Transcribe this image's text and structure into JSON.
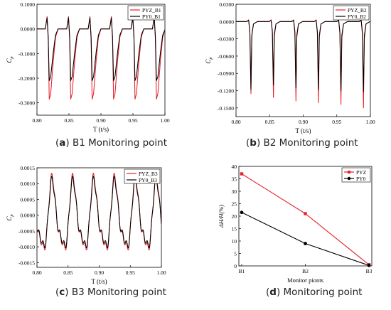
{
  "captions": [
    {
      "letter": "a",
      "text": "B1 Monitoring point"
    },
    {
      "letter": "b",
      "text": "B2 Monitoring point"
    },
    {
      "letter": "c",
      "text": "B3 Monitoring point"
    },
    {
      "letter": "d",
      "text": "Monitoring point"
    }
  ],
  "colors": {
    "pyz": "#e8202a",
    "py0": "#000000"
  },
  "chart_data": [
    {
      "id": "a",
      "type": "line",
      "xlabel": "T (t/s)",
      "ylabel": "Cp",
      "xlim": [
        0.8,
        1.0
      ],
      "ylim": [
        -0.35,
        0.1
      ],
      "xticks": [
        "0.80",
        "0.85",
        "0.90",
        "0.95",
        "1.00"
      ],
      "yticks": [
        "0.1000",
        "0.0000",
        "-0.1000",
        "-0.2000",
        "-0.3000"
      ],
      "legend": "top-right",
      "period": 0.0335,
      "first_peak": 0.817,
      "series": [
        {
          "name": "PYZ_B1",
          "color": "#e8202a",
          "baseline": 0.0,
          "spike": 0.05,
          "trough": -0.285
        },
        {
          "name": "PY0_B1",
          "color": "#000000",
          "baseline": 0.0,
          "spike": 0.045,
          "trough": -0.21
        }
      ]
    },
    {
      "id": "b",
      "type": "line",
      "xlabel": "T (t/s)",
      "ylabel": "Cp",
      "xlim": [
        0.8,
        1.0
      ],
      "ylim": [
        -0.165,
        0.03
      ],
      "xticks": [
        "0.80",
        "0.85",
        "0.90",
        "0.95",
        "1.00"
      ],
      "yticks": [
        "0.0300",
        "0.0000",
        "-0.0300",
        "-0.0600",
        "-0.0900",
        "-0.1200",
        "-0.1500"
      ],
      "legend": "top-right",
      "period": 0.0335,
      "first_peak": 0.82,
      "series": [
        {
          "name": "PYZ_B2",
          "color": "#e8202a",
          "baseline": 0.0,
          "spike": 0.003,
          "troughs": [
            -0.125,
            -0.132,
            -0.138,
            -0.141,
            -0.144,
            -0.15
          ]
        },
        {
          "name": "PY0_B2",
          "color": "#000000",
          "baseline": 0.0,
          "spike": 0.002,
          "troughs": [
            -0.118,
            -0.11,
            -0.115,
            -0.118,
            -0.12,
            -0.122
          ]
        }
      ]
    },
    {
      "id": "c",
      "type": "line",
      "xlabel": "T (t/s)",
      "ylabel": "Cp",
      "xlim": [
        0.8,
        1.0
      ],
      "ylim": [
        -0.00165,
        0.0015
      ],
      "xticks": [
        "0.80",
        "0.85",
        "0.90",
        "0.95",
        "1.00"
      ],
      "yticks": [
        "0.0015",
        "0.0010",
        "0.0005",
        "0.0000",
        "-0.0005",
        "-0.0010",
        "-0.0015"
      ],
      "legend": "top-right",
      "period": 0.0335,
      "phase": 0.825,
      "series": [
        {
          "name": "PYZ_B3",
          "color": "#e8202a",
          "amp": 0.00135,
          "offset": -0.0001
        },
        {
          "name": "PY0_B3",
          "color": "#000000",
          "amp": 0.00125,
          "offset": -0.0001
        }
      ]
    },
    {
      "id": "d",
      "type": "line",
      "xlabel": "Monitor pionts",
      "ylabel": "ΔH/H(%)",
      "categories": [
        "B1",
        "B2",
        "B3"
      ],
      "ylim": [
        0,
        40
      ],
      "yticks": [
        "0",
        "5",
        "10",
        "15",
        "20",
        "25",
        "30",
        "35",
        "40"
      ],
      "legend": "top-right",
      "series": [
        {
          "name": "PYZ",
          "color": "#e8202a",
          "marker": "square",
          "values": [
            37,
            21,
            0.5
          ]
        },
        {
          "name": "PY0",
          "color": "#000000",
          "marker": "circle",
          "values": [
            21.5,
            9,
            0.2
          ]
        }
      ]
    }
  ]
}
